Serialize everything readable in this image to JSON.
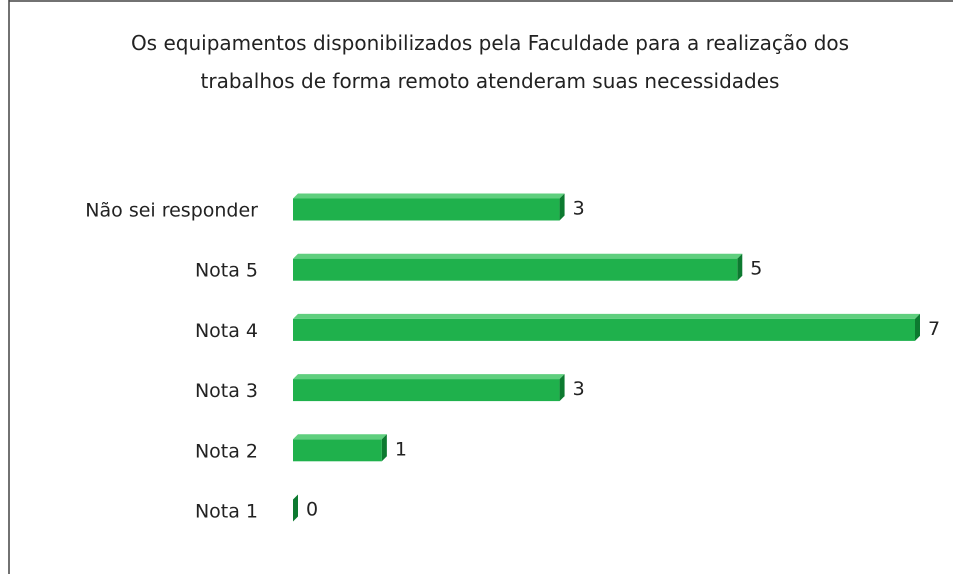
{
  "chart_data": {
    "type": "bar3d_horizontal",
    "title": "Os equipamentos disponibilizados pela Faculdade para a realização dos trabalhos de forma remoto atenderam suas necessidades",
    "categories": [
      "Não sei responder",
      "Nota 5",
      "Nota 4",
      "Nota 3",
      "Nota 2",
      "Nota 1"
    ],
    "values": [
      3,
      5,
      7,
      3,
      1,
      0
    ],
    "color": "#1fb14c"
  }
}
